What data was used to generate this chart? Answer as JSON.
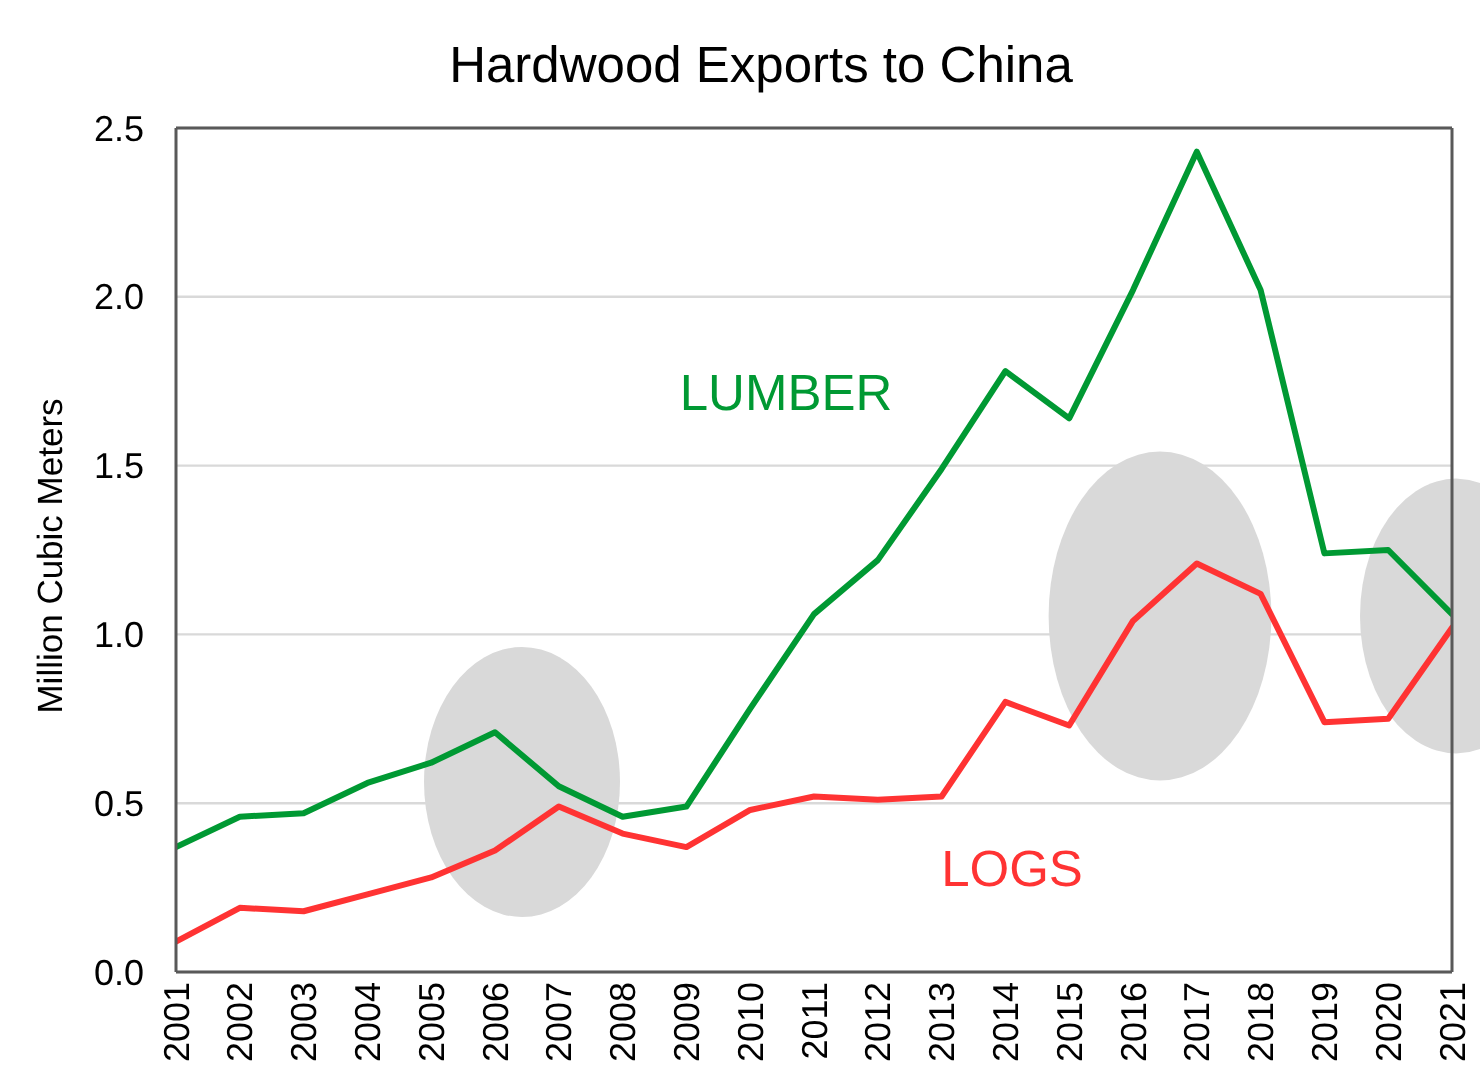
{
  "chart_data": {
    "type": "line",
    "title": "Hardwood Exports to China",
    "ylabel": "Million Cubic Meters",
    "categories": [
      "2001",
      "2002",
      "2003",
      "2004",
      "2005",
      "2006",
      "2007",
      "2008",
      "2009",
      "2010",
      "2011",
      "2012",
      "2013",
      "2014",
      "2015",
      "2016",
      "2017",
      "2018",
      "2019",
      "2020",
      "2021"
    ],
    "series": [
      {
        "name": "LUMBER",
        "color": "#009933",
        "values": [
          0.37,
          0.46,
          0.47,
          0.56,
          0.62,
          0.71,
          0.55,
          0.46,
          0.49,
          0.78,
          1.06,
          1.22,
          1.49,
          1.78,
          1.64,
          2.02,
          2.43,
          2.02,
          1.24,
          1.25,
          1.06
        ]
      },
      {
        "name": "LOGS",
        "color": "#ff3333",
        "values": [
          0.09,
          0.19,
          0.18,
          0.23,
          0.28,
          0.36,
          0.49,
          0.41,
          0.37,
          0.48,
          0.52,
          0.51,
          0.52,
          0.8,
          0.73,
          1.04,
          1.21,
          1.12,
          0.74,
          0.75,
          1.02
        ]
      }
    ],
    "ylim": [
      0,
      2.5
    ],
    "yticks": [
      {
        "value": 0,
        "label": "0.0"
      },
      0.5,
      {
        "value": 1,
        "label": "1.0"
      },
      1.5,
      {
        "value": 2,
        "label": "2.0"
      },
      2.5
    ],
    "grid": "y",
    "marker": "none"
  }
}
